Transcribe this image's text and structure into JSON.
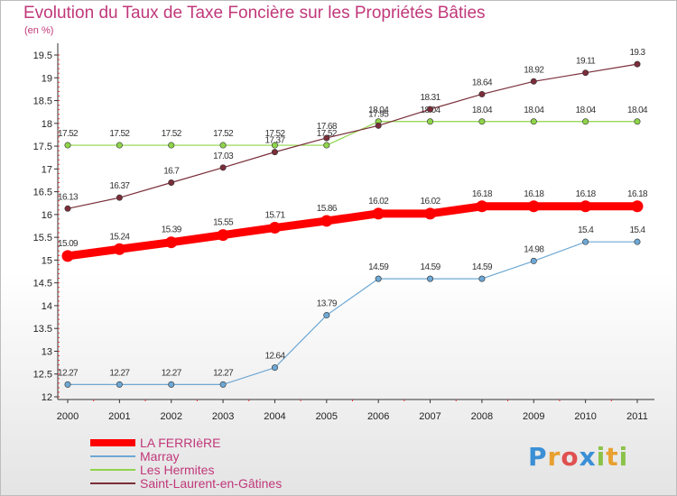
{
  "title": "Evolution du Taux de Taxe Foncière sur les Propriétés Bâties",
  "subtitle": "(en %)",
  "logo": {
    "letters": [
      "P",
      "r",
      "o",
      "x",
      "i",
      "t",
      "i"
    ],
    "colors": [
      "#3a8fd6",
      "#e8a030",
      "#e05050",
      "#3a8fd6",
      "#8bc34a",
      "#e8a030",
      "#8bc34a"
    ]
  },
  "chart_data": {
    "type": "line",
    "x": [
      2000,
      2001,
      2002,
      2003,
      2004,
      2005,
      2006,
      2007,
      2008,
      2009,
      2010,
      2011
    ],
    "ylim": [
      12,
      19.5
    ],
    "yticks": [
      12,
      12.5,
      13,
      13.5,
      14,
      14.5,
      15,
      15.5,
      16,
      16.5,
      17,
      17.5,
      18,
      18.5,
      19,
      19.5
    ],
    "legend_position": "bottom-left",
    "grid": false,
    "series": [
      {
        "name": "Les Hermites",
        "color": "#8fd44a",
        "emphasis": false,
        "values": [
          17.52,
          17.52,
          17.52,
          17.52,
          17.52,
          17.52,
          18.04,
          18.04,
          18.04,
          18.04,
          18.04,
          18.04
        ],
        "labels": [
          "17.52",
          "17.52",
          "17.52",
          "17.52",
          "17.52",
          "17.52",
          "18.04",
          "18.04",
          "18.04",
          "18.04",
          "18.04",
          "18.04"
        ]
      },
      {
        "name": "Saint-Laurent-en-Gâtines",
        "color": "#7a2e3a",
        "emphasis": false,
        "values": [
          16.13,
          16.37,
          16.7,
          17.03,
          17.37,
          17.68,
          17.95,
          18.31,
          18.64,
          18.92,
          19.11,
          19.3
        ],
        "labels": [
          "16.13",
          "16.37",
          "16.7",
          "17.03",
          "17.37",
          "17.68",
          "17.95",
          "18.31",
          "18.64",
          "18.92",
          "19.11",
          "19.3"
        ]
      },
      {
        "name": "Marray",
        "color": "#6ea8d4",
        "emphasis": false,
        "values": [
          12.27,
          12.27,
          12.27,
          12.27,
          12.64,
          13.79,
          14.59,
          14.59,
          14.59,
          14.98,
          15.4,
          15.4
        ],
        "labels": [
          "12.27",
          "12.27",
          "12.27",
          "12.27",
          "12.64",
          "13.79",
          "14.59",
          "14.59",
          "14.59",
          "14.98",
          "15.4",
          "15.4"
        ]
      },
      {
        "name": "LA FERRIèRE",
        "color": "#ff0000",
        "emphasis": true,
        "values": [
          15.09,
          15.24,
          15.39,
          15.55,
          15.71,
          15.86,
          16.02,
          16.02,
          16.18,
          16.18,
          16.18,
          16.18
        ],
        "labels": [
          "15.09",
          "15.24",
          "15.39",
          "15.55",
          "15.71",
          "15.86",
          "16.02",
          "16.02",
          "16.18",
          "16.18",
          "16.18",
          "16.18"
        ]
      }
    ],
    "legend": [
      "LA FERRIèRE",
      "Marray",
      "Les Hermites",
      "Saint-Laurent-en-Gâtines"
    ]
  }
}
